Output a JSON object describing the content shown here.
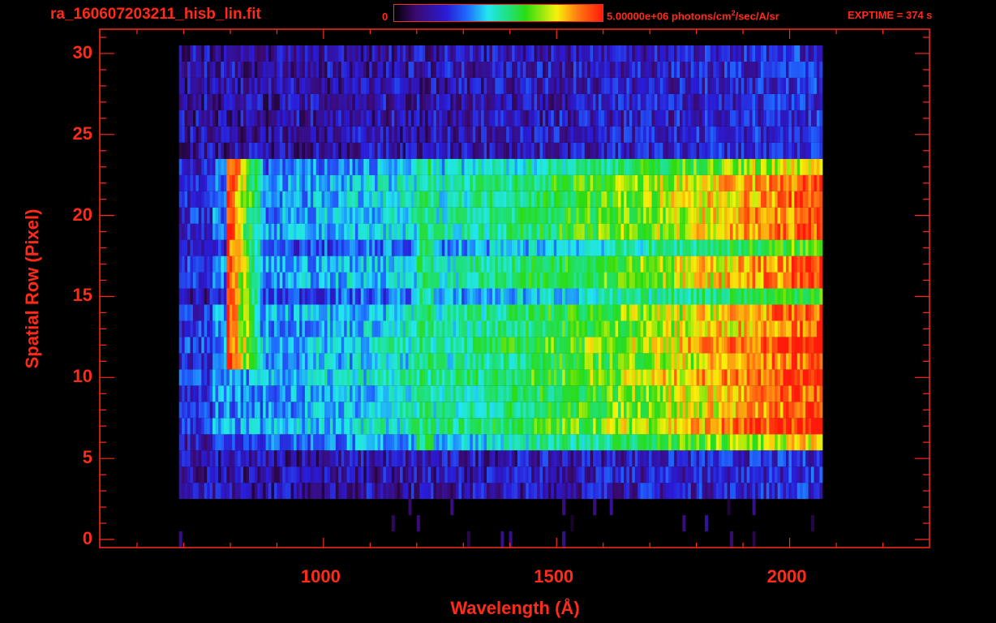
{
  "header": {
    "file_title": "ra_160607203211_hisb_lin.fit",
    "colorbar_min": "0",
    "colorbar_max": "5.00000e+06",
    "colorbar_unit_pre": " photons/cm",
    "colorbar_unit_exp": "2",
    "colorbar_unit_post": "/sec/A/sr",
    "exptime": "EXPTIME = 374 s"
  },
  "colors": {
    "axis": "#ff2a1a",
    "background": "#000000",
    "colormap": [
      "#000000",
      "#3a0a6e",
      "#2a1bd6",
      "#1f6bff",
      "#22e6ee",
      "#1fe07a",
      "#2bdc12",
      "#f7f20a",
      "#ff7a12",
      "#ff1a0a"
    ]
  },
  "chart_data": {
    "type": "heatmap",
    "title": "ra_160607203211_hisb_lin.fit",
    "xlabel": "Wavelength (Å)",
    "ylabel": "Spatial Row (Pixel)",
    "xlim": [
      520,
      2300
    ],
    "ylim": [
      -0.5,
      31.5
    ],
    "x_ticks": [
      1000,
      1500,
      2000
    ],
    "y_ticks": [
      0,
      5,
      10,
      15,
      20,
      25,
      30
    ],
    "colorbar": {
      "min": 0,
      "max": 5000000,
      "unit": "photons/cm^2/sec/A/sr"
    },
    "wavelength_range": [
      690,
      2070
    ],
    "rows": 31,
    "features": [
      {
        "label": "bright arc (Lyman region)",
        "x_range": [
          790,
          900
        ],
        "rows": [
          11,
          23
        ]
      },
      {
        "label": "vertical band",
        "x": 1215
      },
      {
        "label": "main illuminated rows",
        "rows": [
          6,
          23
        ]
      }
    ]
  }
}
